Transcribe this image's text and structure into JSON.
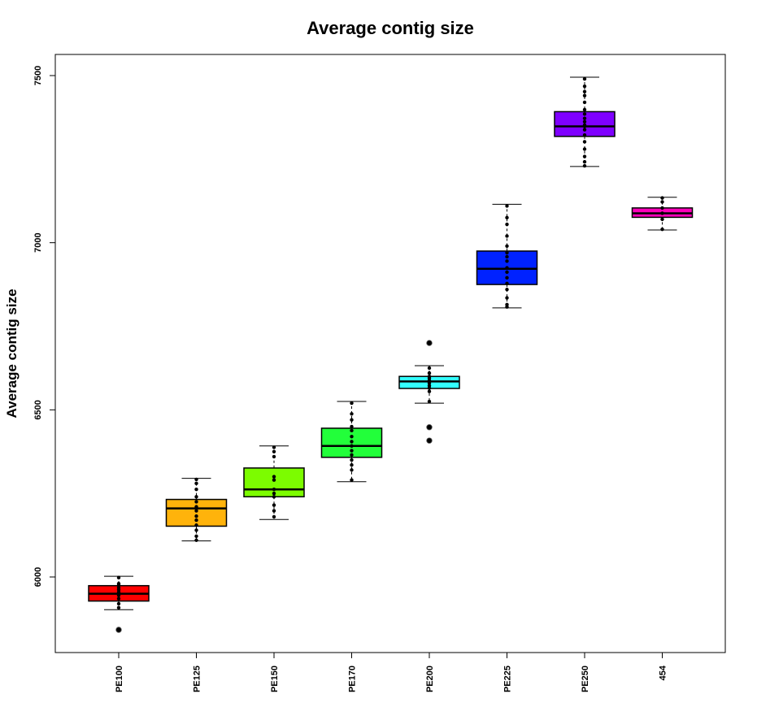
{
  "chart_data": {
    "type": "box",
    "title": "Average contig size",
    "xlabel": "",
    "ylabel": "Average contig size",
    "ylim": [
      5775,
      7565
    ],
    "yticks": [
      6000,
      6500,
      7000,
      7500
    ],
    "categories": [
      "PE100",
      "PE125",
      "PE150",
      "PE170",
      "PE200",
      "PE225",
      "PE250",
      "454"
    ],
    "colors": [
      "#ff0000",
      "#ffb30b",
      "#7cfc00",
      "#22ff3a",
      "#33ffff",
      "#0022ff",
      "#7f00ff",
      "#ff00bb"
    ],
    "grid": false,
    "legend": "none",
    "boxes": [
      {
        "whisker_low": 5902,
        "q1": 5928,
        "median": 5950,
        "q3": 5974,
        "whisker_high": 6002,
        "outliers": [
          5842
        ],
        "points": [
          5908,
          5920,
          5935,
          5945,
          5955,
          5962,
          5968,
          5975,
          5980,
          5998
        ]
      },
      {
        "whisker_low": 6108,
        "q1": 6152,
        "median": 6205,
        "q3": 6232,
        "whisker_high": 6295,
        "outliers": [],
        "points": [
          6110,
          6122,
          6140,
          6155,
          6170,
          6182,
          6198,
          6210,
          6225,
          6240,
          6262,
          6280,
          6292
        ]
      },
      {
        "whisker_low": 6172,
        "q1": 6240,
        "median": 6262,
        "q3": 6326,
        "whisker_high": 6392,
        "outliers": [],
        "points": [
          6180,
          6198,
          6215,
          6240,
          6250,
          6262,
          6290,
          6300,
          6360,
          6375,
          6388
        ]
      },
      {
        "whisker_low": 6285,
        "q1": 6358,
        "median": 6392,
        "q3": 6445,
        "whisker_high": 6525,
        "outliers": [],
        "points": [
          6290,
          6320,
          6335,
          6350,
          6365,
          6378,
          6392,
          6405,
          6420,
          6438,
          6450,
          6470,
          6488,
          6520
        ]
      },
      {
        "whisker_low": 6520,
        "q1": 6564,
        "median": 6585,
        "q3": 6600,
        "whisker_high": 6632,
        "outliers": [
          6408,
          6448,
          6700
        ],
        "points": [
          6525,
          6555,
          6565,
          6572,
          6580,
          6588,
          6595,
          6600,
          6610,
          6625
        ]
      },
      {
        "whisker_low": 6805,
        "q1": 6875,
        "median": 6922,
        "q3": 6975,
        "whisker_high": 7115,
        "outliers": [],
        "points": [
          6808,
          6815,
          6835,
          6860,
          6878,
          6895,
          6912,
          6925,
          6945,
          6958,
          6970,
          6990,
          7020,
          7055,
          7075,
          7110
        ]
      },
      {
        "whisker_low": 7228,
        "q1": 7318,
        "median": 7348,
        "q3": 7392,
        "whisker_high": 7495,
        "outliers": [],
        "points": [
          7230,
          7242,
          7258,
          7280,
          7302,
          7322,
          7338,
          7348,
          7352,
          7362,
          7372,
          7385,
          7398,
          7420,
          7440,
          7452,
          7468,
          7490
        ]
      },
      {
        "whisker_low": 7038,
        "q1": 7076,
        "median": 7088,
        "q3": 7104,
        "whisker_high": 7136,
        "outliers": [],
        "points": [
          7040,
          7070,
          7088,
          7104,
          7122,
          7134
        ]
      }
    ]
  }
}
